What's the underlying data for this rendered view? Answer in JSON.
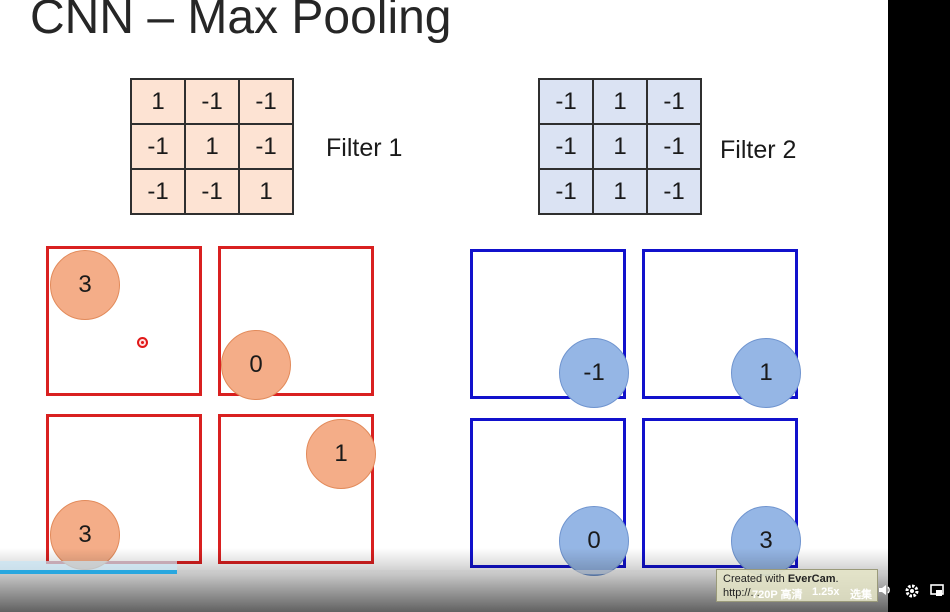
{
  "slide": {
    "title": "CNN – Max Pooling",
    "filter1": {
      "label": "Filter 1",
      "cells": [
        [
          "1",
          "-1",
          "-1"
        ],
        [
          "-1",
          "1",
          "-1"
        ],
        [
          "-1",
          "-1",
          "1"
        ]
      ],
      "fill_color": "#fde3d3"
    },
    "filter2": {
      "label": "Filter 2",
      "cells": [
        [
          "-1",
          "1",
          "-1"
        ],
        [
          "-1",
          "1",
          "-1"
        ],
        [
          "-1",
          "1",
          "-1"
        ]
      ],
      "fill_color": "#dbe3f3"
    },
    "pool1_values": [
      "3",
      "0",
      "3",
      "1"
    ],
    "pool2_values": [
      "-1",
      "1",
      "0",
      "3"
    ],
    "colors": {
      "pool1_border": "#d92020",
      "pool2_border": "#1111cc",
      "pool1_circle": "#f4ad88",
      "pool2_circle": "#95b6e5"
    }
  },
  "player": {
    "watermark_line1_prefix": "Created with ",
    "watermark_brand": "EverCam",
    "watermark_line2": "http://...",
    "quality": "720P 高清",
    "speed": "1.25x",
    "subtitle_btn": "选集",
    "progress_fraction": 0.199,
    "icons": [
      "volume-icon",
      "settings-icon",
      "fullscreen-icon"
    ]
  }
}
